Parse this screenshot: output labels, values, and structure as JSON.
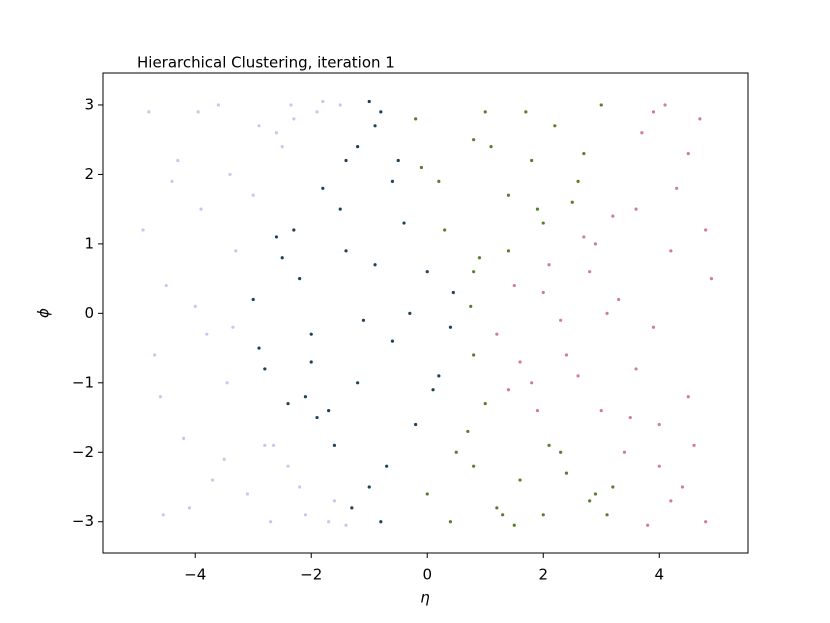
{
  "chart_data": {
    "type": "scatter",
    "title": "Hierarchical Clustering, iteration 1",
    "x_label": "η",
    "y_label": "ϕ",
    "xlim": [
      -5.59,
      5.53
    ],
    "ylim": [
      -3.45,
      3.46
    ],
    "xticks": [
      {
        "value": -4,
        "label": "−4"
      },
      {
        "value": -2,
        "label": "−2"
      },
      0,
      2,
      4
    ],
    "yticks": [
      {
        "value": -3,
        "label": "−3"
      },
      {
        "value": -2,
        "label": "−2"
      },
      {
        "value": -1,
        "label": "−1"
      },
      0,
      1,
      2,
      3
    ],
    "series": [
      {
        "color": "#c0cbee",
        "x": [
          -4.8,
          -4.6,
          -4.5,
          -4.3,
          -4.1,
          -3.9,
          -3.8,
          -3.6,
          -3.5,
          -3.3,
          -3.1,
          -2.9,
          -2.7,
          -2.5,
          -2.3,
          -2.1,
          -1.8,
          -1.6,
          -1.4,
          -4.7,
          -4.4,
          -4.2,
          -4.0,
          -3.7,
          -3.4,
          -3.35,
          -3.0,
          -2.8,
          -2.6,
          -2.4,
          -2.2,
          -1.9,
          -1.5,
          -4.9,
          -4.55,
          -3.95,
          -3.45,
          -2.65,
          -2.35,
          -1.7
        ],
        "values": [
          2.9,
          -1.2,
          0.4,
          2.2,
          -2.8,
          1.5,
          -0.3,
          3.0,
          -2.1,
          0.9,
          -2.6,
          2.7,
          -3.0,
          2.4,
          2.8,
          -2.9,
          3.05,
          -2.7,
          -3.05,
          -0.6,
          1.9,
          -1.8,
          0.1,
          -2.4,
          2.0,
          -0.2,
          1.7,
          -1.9,
          2.6,
          -2.2,
          -2.5,
          2.9,
          3.0,
          1.2,
          -2.9,
          2.9,
          -1.0,
          -1.9,
          3.0,
          -3.0
        ]
      },
      {
        "color": "#1f4257",
        "x": [
          -3.0,
          -2.8,
          -2.6,
          -2.4,
          -2.2,
          -2.0,
          -1.8,
          -1.6,
          -1.4,
          -1.2,
          -1.0,
          -0.8,
          -0.6,
          -0.4,
          -0.2,
          0.0,
          0.2,
          0.4,
          0.45,
          -2.9,
          -2.5,
          -2.1,
          -1.9,
          -1.5,
          -1.1,
          -0.9,
          -0.7,
          -0.3,
          0.1,
          -1.3,
          -1.0,
          -0.8,
          -0.6,
          -1.2,
          -0.9,
          -2.3,
          -1.7,
          -0.5,
          -1.4,
          -2.0
        ],
        "values": [
          0.2,
          -0.8,
          1.1,
          -1.3,
          0.5,
          -0.7,
          1.8,
          -1.9,
          0.9,
          2.4,
          -2.5,
          2.9,
          -0.4,
          1.3,
          -1.6,
          0.6,
          -0.9,
          -0.2,
          0.3,
          -0.5,
          0.8,
          -1.2,
          -1.5,
          1.5,
          -0.1,
          2.7,
          -2.2,
          0.0,
          -1.1,
          -2.8,
          3.05,
          -3.0,
          1.9,
          -1.0,
          0.7,
          1.2,
          -1.4,
          2.2,
          2.2,
          -0.3
        ]
      },
      {
        "color": "#5a7d2e",
        "x": [
          -0.2,
          0.0,
          0.2,
          0.4,
          0.8,
          0.8,
          1.0,
          1.2,
          1.4,
          1.6,
          1.8,
          2.0,
          2.2,
          2.4,
          2.6,
          2.8,
          3.0,
          3.2,
          0.3,
          0.7,
          1.1,
          1.5,
          1.9,
          2.3,
          2.7,
          3.1,
          -0.1,
          0.5,
          0.9,
          1.3,
          1.7,
          2.1,
          2.5,
          2.9,
          0.8,
          0.8,
          1.0,
          0.75,
          1.4,
          2.0
        ],
        "values": [
          2.8,
          -2.6,
          1.9,
          -3.0,
          2.5,
          -2.2,
          2.9,
          -2.8,
          1.7,
          -2.4,
          2.2,
          -2.9,
          2.7,
          -2.3,
          1.9,
          -2.7,
          3.0,
          -2.5,
          1.2,
          -1.7,
          2.4,
          -3.05,
          1.5,
          -2.0,
          2.3,
          -2.9,
          2.1,
          -2.0,
          0.8,
          -2.9,
          2.9,
          -1.9,
          1.6,
          -2.6,
          0.6,
          -0.6,
          -1.3,
          0.1,
          0.9,
          1.3
        ]
      },
      {
        "color": "#d07c9a",
        "x": [
          1.2,
          1.5,
          1.8,
          2.1,
          2.4,
          2.7,
          3.0,
          3.3,
          3.6,
          3.9,
          4.2,
          4.5,
          4.8,
          3.7,
          4.0,
          4.3,
          4.6,
          4.9,
          3.8,
          4.1,
          4.4,
          4.7,
          3.6,
          3.9,
          4.2,
          4.5,
          1.4,
          1.9,
          2.3,
          2.8,
          3.2,
          3.5,
          2.6,
          3.1,
          2.0,
          1.6,
          4.8,
          4.0,
          3.4,
          2.9
        ],
        "values": [
          -0.3,
          0.4,
          -1.0,
          0.7,
          -0.6,
          1.1,
          -1.4,
          0.2,
          -0.8,
          2.9,
          -2.7,
          2.3,
          -3.0,
          2.6,
          -2.2,
          1.8,
          -1.9,
          0.5,
          -3.05,
          3.0,
          -2.5,
          2.8,
          1.5,
          -0.2,
          0.9,
          -1.2,
          -1.1,
          -1.4,
          -0.1,
          0.6,
          1.4,
          -1.5,
          -0.9,
          0.0,
          0.3,
          -0.7,
          1.2,
          -1.6,
          -2.0,
          1.0
        ]
      }
    ]
  }
}
